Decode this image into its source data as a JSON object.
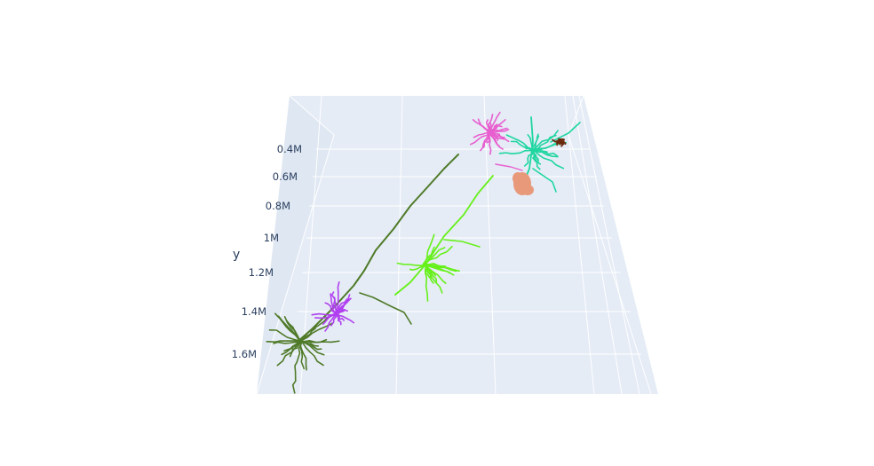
{
  "chart_data": {
    "type": "scatter3d",
    "title": "",
    "yaxis": {
      "title": "y",
      "ticks": [
        "0.4M",
        "0.6M",
        "0.8M",
        "1M",
        "1.2M",
        "1.4M",
        "1.6M"
      ],
      "tick_values": [
        400000,
        600000,
        800000,
        1000000,
        1200000,
        1400000,
        1600000
      ],
      "reversed": true
    },
    "scene_background": "#e5ecf6",
    "grid_color": "#ffffff",
    "series": [
      {
        "color": "#4f7a28"
      },
      {
        "color": "#b140f0"
      },
      {
        "color": "#66f01a"
      },
      {
        "color": "#e85fcf"
      },
      {
        "color": "#1fd6a0"
      },
      {
        "color": "#e8997a"
      },
      {
        "color": "#6b2a0e"
      }
    ],
    "legend": "none"
  }
}
